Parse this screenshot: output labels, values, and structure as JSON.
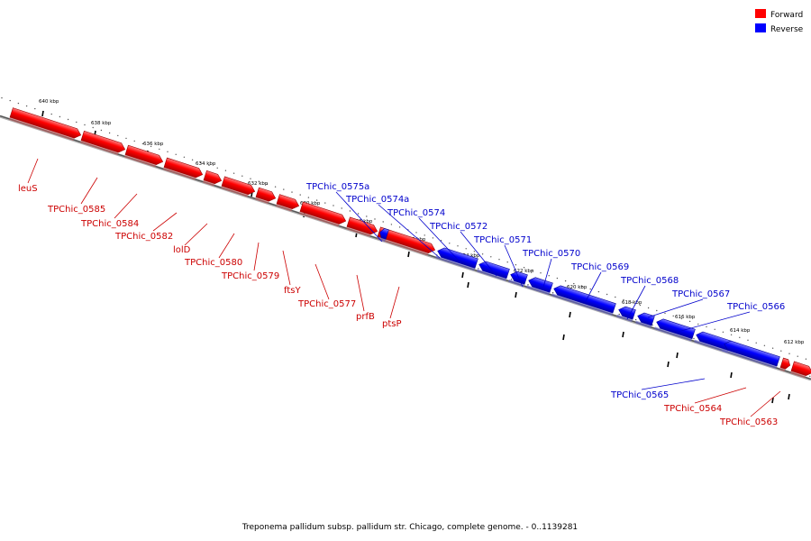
{
  "legend": {
    "forward": {
      "label": "Forward",
      "color": "#ff0000"
    },
    "reverse": {
      "label": "Reverse",
      "color": "#0000ff"
    }
  },
  "caption": "Treponema pallidum subsp. pallidum str. Chicago, complete genome. - 0..1139281",
  "ticks": [
    {
      "label": "640 kbp",
      "kbp": 640
    },
    {
      "label": "638 kbp",
      "kbp": 638
    },
    {
      "label": "636 kbp",
      "kbp": 636
    },
    {
      "label": "634 kbp",
      "kbp": 634
    },
    {
      "label": "632 kbp",
      "kbp": 632
    },
    {
      "label": "630 kbp",
      "kbp": 630
    },
    {
      "label": "628 kbp",
      "kbp": 628
    },
    {
      "label": "626 kbp",
      "kbp": 626
    },
    {
      "label": "624 kbp",
      "kbp": 624
    },
    {
      "label": "622 kbp",
      "kbp": 622
    },
    {
      "label": "620 kbp",
      "kbp": 620
    },
    {
      "label": "618 kbp",
      "kbp": 618
    },
    {
      "label": "616 kbp",
      "kbp": 616
    },
    {
      "label": "614 kbp",
      "kbp": 614
    },
    {
      "label": "612 kbp",
      "kbp": 612
    }
  ],
  "genes": [
    {
      "name": "leuS",
      "strand": "forward"
    },
    {
      "name": "TPChic_0585",
      "strand": "forward"
    },
    {
      "name": "TPChic_0584",
      "strand": "forward"
    },
    {
      "name": "TPChic_0582",
      "strand": "forward"
    },
    {
      "name": "lolD",
      "strand": "forward"
    },
    {
      "name": "TPChic_0580",
      "strand": "forward"
    },
    {
      "name": "TPChic_0579",
      "strand": "forward"
    },
    {
      "name": "ftsY",
      "strand": "forward"
    },
    {
      "name": "TPChic_0577",
      "strand": "forward"
    },
    {
      "name": "prfB",
      "strand": "forward"
    },
    {
      "name": "ptsP",
      "strand": "forward"
    },
    {
      "name": "TPChic_0575a",
      "strand": "reverse"
    },
    {
      "name": "TPChic_0574a",
      "strand": "reverse"
    },
    {
      "name": "TPChic_0574",
      "strand": "reverse"
    },
    {
      "name": "TPChic_0572",
      "strand": "reverse"
    },
    {
      "name": "TPChic_0571",
      "strand": "reverse"
    },
    {
      "name": "TPChic_0570",
      "strand": "reverse"
    },
    {
      "name": "TPChic_0569",
      "strand": "reverse"
    },
    {
      "name": "TPChic_0568",
      "strand": "reverse"
    },
    {
      "name": "TPChic_0567",
      "strand": "reverse"
    },
    {
      "name": "TPChic_0566",
      "strand": "reverse"
    },
    {
      "name": "TPChic_0565",
      "strand": "reverse"
    },
    {
      "name": "TPChic_0564",
      "strand": "forward"
    },
    {
      "name": "TPChic_0563",
      "strand": "forward"
    }
  ]
}
